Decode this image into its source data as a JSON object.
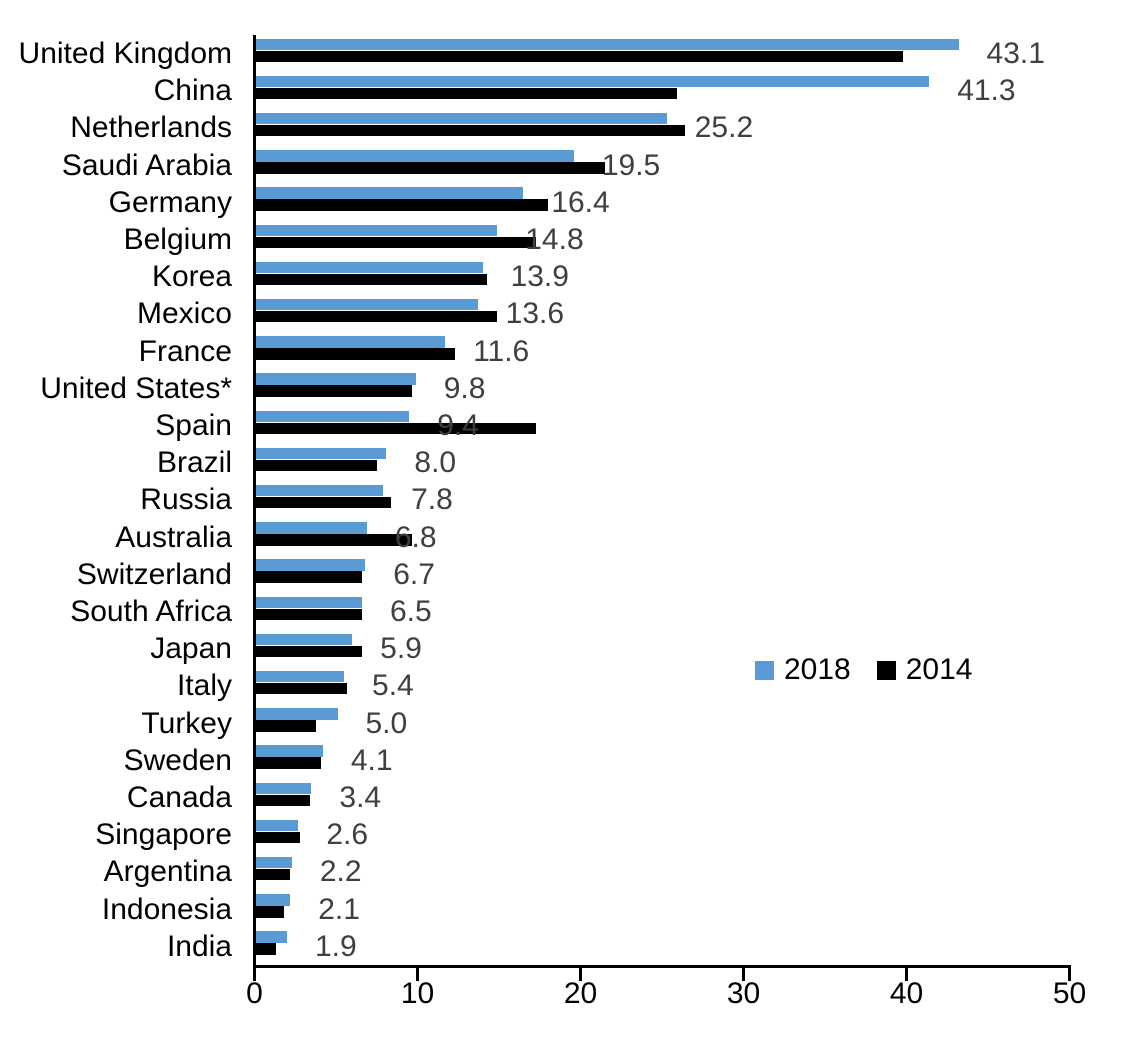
{
  "chart_data": {
    "type": "bar",
    "orientation": "horizontal",
    "categories": [
      "United Kingdom",
      "China",
      "Netherlands",
      "Saudi Arabia",
      "Germany",
      "Belgium",
      "Korea",
      "Mexico",
      "France",
      "United States*",
      "Spain",
      "Brazil",
      "Russia",
      "Australia",
      "Switzerland",
      "South Africa",
      "Japan",
      "Italy",
      "Turkey",
      "Sweden",
      "Canada",
      "Singapore",
      "Argentina",
      "Indonesia",
      "India"
    ],
    "series": [
      {
        "name": "2018",
        "color": "#5B9BD5",
        "values": [
          43.1,
          41.3,
          25.2,
          19.5,
          16.4,
          14.8,
          13.9,
          13.6,
          11.6,
          9.8,
          9.4,
          8.0,
          7.8,
          6.8,
          6.7,
          6.5,
          5.9,
          5.4,
          5.0,
          4.1,
          3.4,
          2.6,
          2.2,
          2.1,
          1.9
        ],
        "data_labels": [
          "43.1",
          "41.3",
          "25.2",
          "19.5",
          "16.4",
          "14.8",
          "13.9",
          "13.6",
          "11.6",
          "9.8",
          "9.4",
          "8.0",
          "7.8",
          "6.8",
          "6.7",
          "6.5",
          "5.9",
          "5.4",
          "5.0",
          "4.1",
          "3.4",
          "2.6",
          "2.2",
          "2.1",
          "1.9"
        ]
      },
      {
        "name": "2014",
        "color": "#000000",
        "values": [
          39.7,
          25.8,
          26.3,
          21.4,
          17.9,
          17.2,
          14.2,
          14.8,
          12.2,
          9.6,
          17.2,
          7.4,
          8.3,
          9.6,
          6.5,
          6.5,
          6.5,
          5.6,
          3.7,
          4.0,
          3.3,
          2.7,
          2.1,
          1.7,
          1.2
        ],
        "data_labels": []
      }
    ],
    "xlim": [
      0,
      50
    ],
    "x_ticks": [
      "0",
      "10",
      "20",
      "30",
      "40",
      "50"
    ],
    "grid": false,
    "legend": [
      {
        "label": "2018",
        "color": "#5B9BD5"
      },
      {
        "label": "2014",
        "color": "#000000"
      }
    ],
    "legend_position": "center-right",
    "value_label_color": "#3f3f3f",
    "title": ""
  }
}
